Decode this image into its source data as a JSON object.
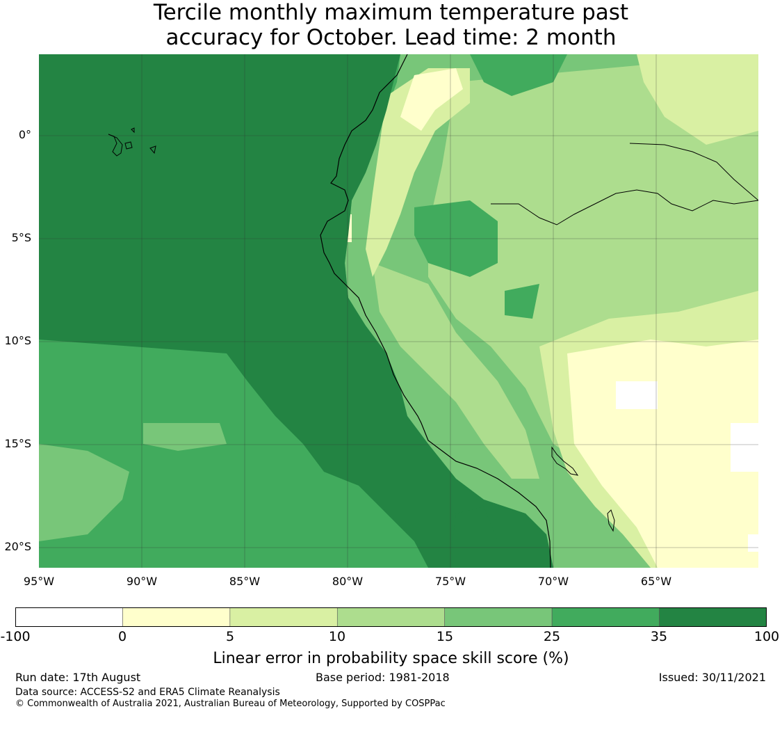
{
  "title": {
    "line1": "Tercile monthly maximum temperature past",
    "line2": "accuracy for October. Lead time: 2 month"
  },
  "map": {
    "lat_labels": [
      "0°",
      "5°S",
      "10°S",
      "15°S",
      "20°S"
    ],
    "lon_labels": [
      "95°W",
      "90°W",
      "85°W",
      "80°W",
      "75°W",
      "70°W",
      "65°W"
    ],
    "colors": {
      "very_dark": "#1f6b38",
      "dark": "#238443",
      "mid_dark": "#41ab5d",
      "mid": "#78c679",
      "light": "#addd8e",
      "lighter": "#d9f0a3",
      "lightest": "#ffffcc",
      "white": "#ffffff",
      "coast": "#000000",
      "grid": "#333333"
    }
  },
  "colorbar": {
    "ticks": [
      "-100",
      "0",
      "5",
      "10",
      "15",
      "25",
      "35",
      "100"
    ],
    "colors": [
      "#ffffff",
      "#ffffcc",
      "#d9f0a3",
      "#addd8e",
      "#78c679",
      "#41ab5d",
      "#238443"
    ],
    "label": "Linear error in probability space skill score (%)"
  },
  "footer": {
    "run_date": "Run date: 17th August",
    "base_period": "Base period: 1981-2018",
    "issued": "Issued: 30/11/2021",
    "data_source": "Data source: ACCESS-S2 and ERA5 Climate Reanalysis",
    "copyright": "© Commonwealth of Australia 2021, Australian Bureau of Meteorology, Supported by COSPPac"
  }
}
